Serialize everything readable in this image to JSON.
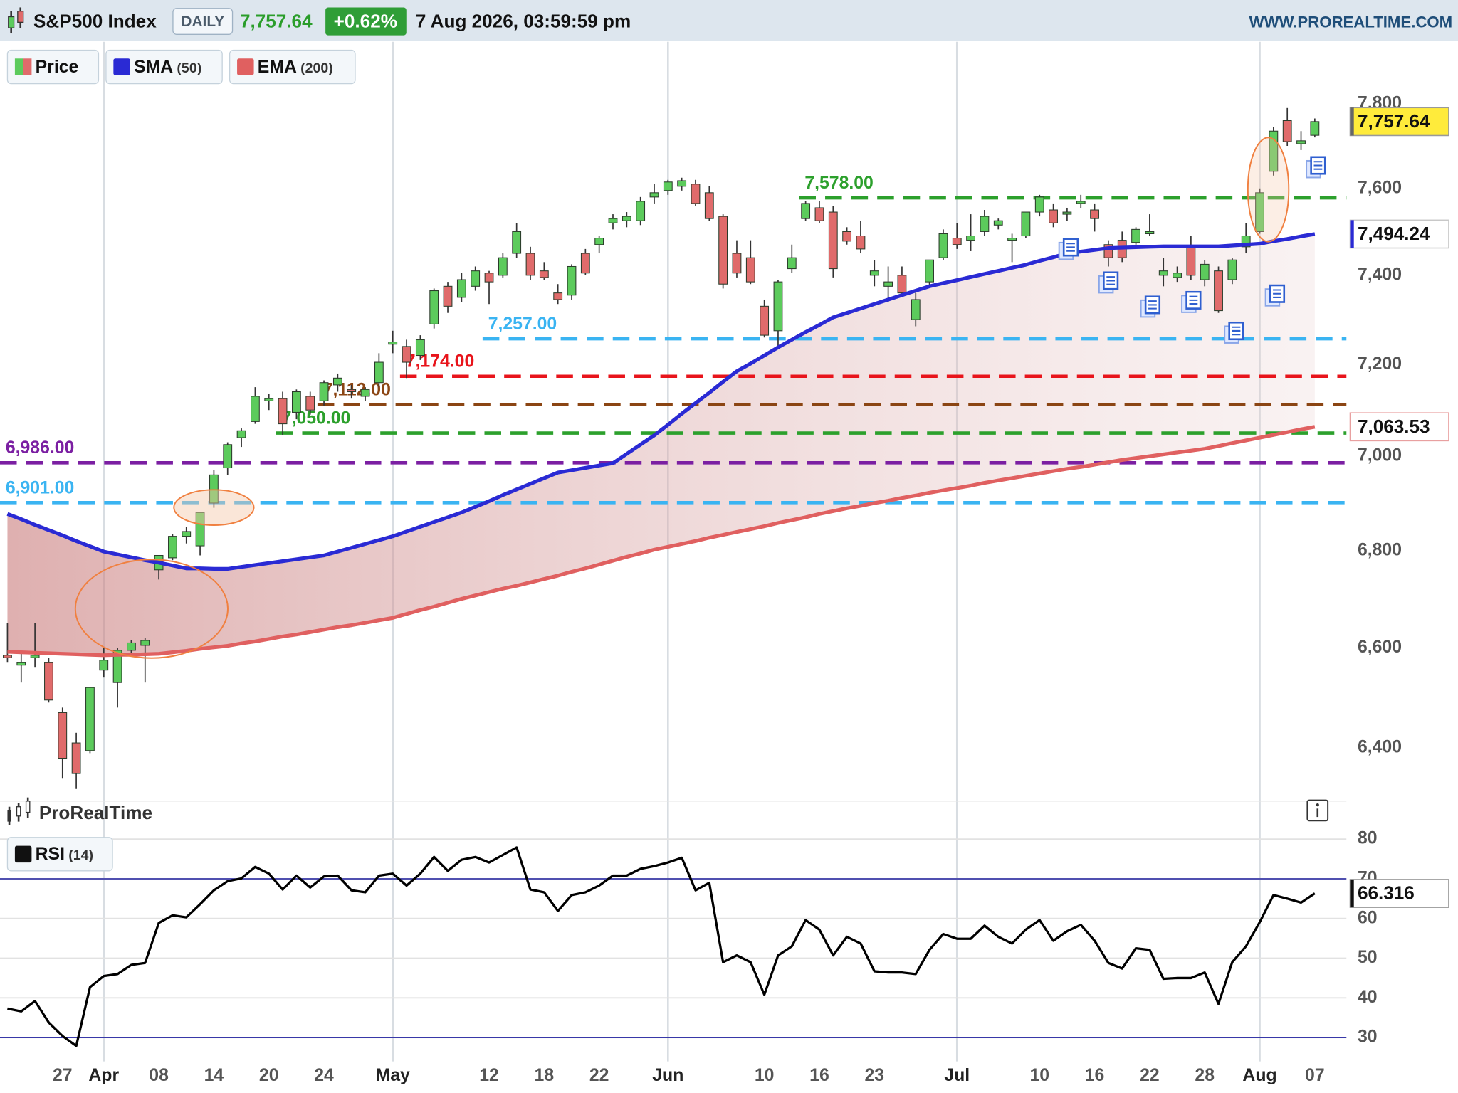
{
  "header": {
    "title": "S&P500 Index",
    "period": "DAILY",
    "price": "7,757.64",
    "change": "+0.62%",
    "datetime": "7 Aug 2026, 03:59:59 pm",
    "site": "WWW.PROREALTIME.COM",
    "watermark": "ProRealTime"
  },
  "chart_data": [
    {
      "type": "candlestick",
      "log_scale": true,
      "categories": [
        null,
        null,
        null,
        null,
        "27",
        null,
        null,
        "Apr",
        null,
        null,
        null,
        "08",
        null,
        null,
        null,
        "14",
        null,
        null,
        null,
        "20",
        null,
        null,
        null,
        "24",
        null,
        null,
        null,
        null,
        "May",
        null,
        null,
        null,
        null,
        null,
        null,
        "12",
        null,
        null,
        null,
        "18",
        null,
        null,
        null,
        "22",
        null,
        null,
        null,
        null,
        "Jun",
        null,
        null,
        null,
        null,
        null,
        null,
        "10",
        null,
        null,
        null,
        "16",
        null,
        null,
        null,
        "23",
        null,
        null,
        null,
        null,
        null,
        "Jul",
        null,
        null,
        null,
        null,
        null,
        "10",
        null,
        null,
        null,
        "16",
        null,
        null,
        null,
        "22",
        null,
        null,
        null,
        "28",
        null,
        null,
        null,
        "Aug",
        null,
        null,
        null,
        "07"
      ],
      "ylim": [
        6300,
        7950
      ],
      "yticks": [
        {
          "value": 7800,
          "label": "7,800"
        },
        {
          "value": 7600,
          "label": "7,600"
        },
        {
          "value": 7400,
          "label": "7,400"
        },
        {
          "value": 7200,
          "label": "7,200"
        },
        {
          "value": 7000,
          "label": "7,000"
        },
        {
          "value": 6800,
          "label": "6,800"
        },
        {
          "value": 6600,
          "label": "6,600"
        },
        {
          "value": 6400,
          "label": "6,400"
        }
      ],
      "grid": false,
      "series": [
        {
          "name": "Price",
          "up_color": "#5ccb5c",
          "down_color": "#e06b6b",
          "last_label": "7,757.64",
          "open": [
            6585,
            6565,
            6580,
            6570,
            6470,
            6410,
            6395,
            6555,
            6530,
            6595,
            6605,
            6760,
            6785,
            6830,
            6810,
            6900,
            6975,
            7040,
            7075,
            7120,
            7125,
            7095,
            7130,
            7120,
            7155,
            7145,
            7130,
            7160,
            7245,
            7240,
            7220,
            7290,
            7375,
            7350,
            7375,
            7405,
            7400,
            7450,
            7450,
            7410,
            7360,
            7355,
            7450,
            7470,
            7520,
            7525,
            7525,
            7580,
            7595,
            7605,
            7610,
            7590,
            7535,
            7450,
            7440,
            7330,
            7275,
            7415,
            7530,
            7555,
            7545,
            7500,
            7490,
            7400,
            7375,
            7400,
            7300,
            7385,
            7440,
            7485,
            7480,
            7500,
            7515,
            7480,
            7490,
            7545,
            7550,
            7540,
            7565,
            7550,
            7470,
            7480,
            7475,
            7495,
            7400,
            7395,
            7465,
            7390,
            7410,
            7390,
            7465,
            7500,
            7640,
            7760,
            7705,
            7725
          ],
          "high": [
            6650,
            6590,
            6650,
            6580,
            6480,
            6430,
            6520,
            6600,
            6600,
            6615,
            6620,
            6790,
            6835,
            6850,
            6880,
            6970,
            7030,
            7060,
            7150,
            7135,
            7140,
            7145,
            7140,
            7165,
            7180,
            7155,
            7150,
            7225,
            7275,
            7255,
            7265,
            7370,
            7385,
            7405,
            7420,
            7410,
            7450,
            7520,
            7465,
            7430,
            7380,
            7425,
            7460,
            7490,
            7540,
            7545,
            7580,
            7610,
            7620,
            7625,
            7620,
            7605,
            7540,
            7480,
            7480,
            7345,
            7390,
            7470,
            7570,
            7570,
            7560,
            7510,
            7525,
            7435,
            7420,
            7420,
            7360,
            7435,
            7505,
            7520,
            7540,
            7550,
            7530,
            7495,
            7545,
            7585,
            7565,
            7555,
            7585,
            7565,
            7480,
            7500,
            7510,
            7540,
            7440,
            7420,
            7490,
            7435,
            7420,
            7440,
            7520,
            7600,
            7745,
            7790,
            7735,
            7765
          ],
          "low": [
            6570,
            6530,
            6560,
            6490,
            6340,
            6320,
            6390,
            6540,
            6480,
            6585,
            6530,
            6740,
            6780,
            6815,
            6790,
            6890,
            6960,
            7020,
            7070,
            7100,
            7045,
            7080,
            7090,
            7110,
            7140,
            7125,
            7120,
            7150,
            7225,
            7170,
            7210,
            7280,
            7315,
            7340,
            7365,
            7335,
            7395,
            7440,
            7390,
            7390,
            7335,
            7345,
            7400,
            7450,
            7505,
            7510,
            7515,
            7565,
            7585,
            7595,
            7560,
            7525,
            7370,
            7395,
            7380,
            7260,
            7240,
            7405,
            7525,
            7520,
            7395,
            7470,
            7450,
            7375,
            7340,
            7350,
            7285,
            7375,
            7435,
            7460,
            7455,
            7490,
            7505,
            7430,
            7485,
            7535,
            7510,
            7525,
            7555,
            7500,
            7420,
            7430,
            7470,
            7490,
            7375,
            7385,
            7390,
            7375,
            7315,
            7380,
            7450,
            7495,
            7630,
            7700,
            7690,
            7720
          ],
          "close": [
            6580,
            6570,
            6585,
            6495,
            6380,
            6350,
            6520,
            6575,
            6595,
            6610,
            6615,
            6790,
            6830,
            6840,
            6880,
            6960,
            7025,
            7055,
            7130,
            7125,
            7070,
            7140,
            7100,
            7160,
            7170,
            7140,
            7145,
            7205,
            7250,
            7205,
            7255,
            7365,
            7330,
            7390,
            7410,
            7385,
            7440,
            7500,
            7400,
            7395,
            7345,
            7420,
            7405,
            7485,
            7530,
            7535,
            7570,
            7590,
            7615,
            7618,
            7565,
            7530,
            7380,
            7405,
            7385,
            7265,
            7385,
            7440,
            7565,
            7525,
            7415,
            7478,
            7460,
            7410,
            7385,
            7360,
            7345,
            7435,
            7495,
            7470,
            7490,
            7535,
            7525,
            7485,
            7545,
            7580,
            7520,
            7545,
            7570,
            7530,
            7440,
            7440,
            7505,
            7500,
            7410,
            7405,
            7400,
            7425,
            7320,
            7435,
            7490,
            7590,
            7735,
            7710,
            7712,
            7757.64
          ]
        },
        {
          "name": "SMA",
          "param": "(50)",
          "color": "#2a2ad4",
          "last_label": "7,494.24",
          "values": [
            6877,
            6866,
            6854,
            6843,
            6832,
            6820,
            6809,
            6798,
            6792,
            6786,
            6780,
            6775,
            6769,
            6763,
            6763,
            6762,
            6762,
            6766,
            6770,
            6774,
            6778,
            6782,
            6786,
            6790,
            6798,
            6806,
            6814,
            6822,
            6830,
            6840,
            6850,
            6860,
            6870,
            6880,
            6892,
            6904,
            6917,
            6929,
            6941,
            6953,
            6965,
            6970,
            6975,
            6980,
            6985,
            7005,
            7025,
            7045,
            7068,
            7092,
            7115,
            7138,
            7162,
            7185,
            7202,
            7220,
            7238,
            7255,
            7272,
            7288,
            7305,
            7315,
            7325,
            7335,
            7345,
            7355,
            7365,
            7375,
            7382,
            7389,
            7396,
            7403,
            7410,
            7417,
            7424,
            7433,
            7441,
            7450,
            7454,
            7458,
            7462,
            7463,
            7464,
            7465,
            7466,
            7466,
            7466,
            7466,
            7466,
            7468,
            7470,
            7472,
            7478,
            7483,
            7489,
            7494.24
          ]
        },
        {
          "name": "EMA",
          "param": "(200)",
          "color": "#e06060",
          "last_label": "7,063.53",
          "values": [
            6592,
            6591,
            6590,
            6589,
            6588,
            6587,
            6586,
            6585,
            6586,
            6586,
            6587,
            6588,
            6591,
            6594,
            6598,
            6601,
            6604,
            6609,
            6613,
            6618,
            6623,
            6627,
            6632,
            6637,
            6642,
            6646,
            6651,
            6656,
            6661,
            6669,
            6677,
            6684,
            6692,
            6700,
            6707,
            6714,
            6721,
            6727,
            6734,
            6741,
            6748,
            6756,
            6763,
            6771,
            6779,
            6787,
            6794,
            6802,
            6808,
            6814,
            6820,
            6827,
            6833,
            6839,
            6845,
            6851,
            6858,
            6864,
            6870,
            6877,
            6883,
            6889,
            6894,
            6900,
            6905,
            6911,
            6916,
            6922,
            6927,
            6932,
            6937,
            6943,
            6948,
            6953,
            6958,
            6963,
            6968,
            6973,
            6977,
            6982,
            6987,
            6992,
            6996,
            7000,
            7004,
            7008,
            7012,
            7016,
            7022,
            7028,
            7034,
            7040,
            7046,
            7052,
            7058,
            7063.53
          ]
        }
      ],
      "levels": [
        {
          "value": 7578,
          "label": "7,578.00",
          "color": "#2ca02c",
          "from": 58
        },
        {
          "value": 7257,
          "label": "7,257.00",
          "color": "#3ab4f2",
          "from": 35
        },
        {
          "value": 7174,
          "label": "7,174.00",
          "color": "#e8141b",
          "from": 29
        },
        {
          "value": 7112,
          "label": "7,112.00",
          "color": "#8b4513",
          "from": 23
        },
        {
          "value": 7050,
          "label": "7,050.00",
          "color": "#2ca02c",
          "from": 20
        },
        {
          "value": 6986,
          "label": "6,986.00",
          "color": "#7b1fa2",
          "from": 0
        },
        {
          "value": 6901,
          "label": "6,901.00",
          "color": "#3ab4f2",
          "from": 0
        }
      ]
    },
    {
      "type": "line",
      "ylim": [
        24,
        83
      ],
      "yticks": [
        80,
        70,
        60,
        50,
        40,
        30
      ],
      "levels": [
        30,
        70
      ],
      "grid": true,
      "series": [
        {
          "name": "RSI",
          "param": "(14)",
          "color": "#000000",
          "last_label": "66.316",
          "values": [
            37.3,
            36.6,
            39.2,
            33.8,
            30.4,
            27.9,
            42.7,
            45.5,
            46,
            48.3,
            48.8,
            58.9,
            60.8,
            60.3,
            63.6,
            67.1,
            69.4,
            70.1,
            73,
            71.3,
            67.3,
            70.8,
            67.8,
            70.6,
            70.8,
            67.1,
            66.6,
            70.8,
            71.3,
            68.3,
            71.3,
            75.5,
            72,
            74.8,
            75.5,
            74.1,
            76,
            77.9,
            67.3,
            66.6,
            61.9,
            65.9,
            66.6,
            68.3,
            70.8,
            70.8,
            72.5,
            73.2,
            74.1,
            75.3,
            67.1,
            69,
            49,
            50.7,
            49,
            40.8,
            50.7,
            53,
            59.6,
            57.2,
            50.7,
            55.4,
            53.7,
            46.7,
            46.4,
            46.4,
            46,
            52.1,
            56.1,
            54.9,
            54.9,
            58.2,
            55.4,
            53.7,
            57.2,
            59.6,
            54.4,
            56.8,
            58.4,
            54.4,
            48.8,
            47.4,
            52.5,
            52.1,
            44.8,
            45,
            45,
            46.4,
            38.5,
            49,
            53,
            59.1,
            65.9,
            65,
            64,
            66.316
          ]
        }
      ]
    }
  ]
}
